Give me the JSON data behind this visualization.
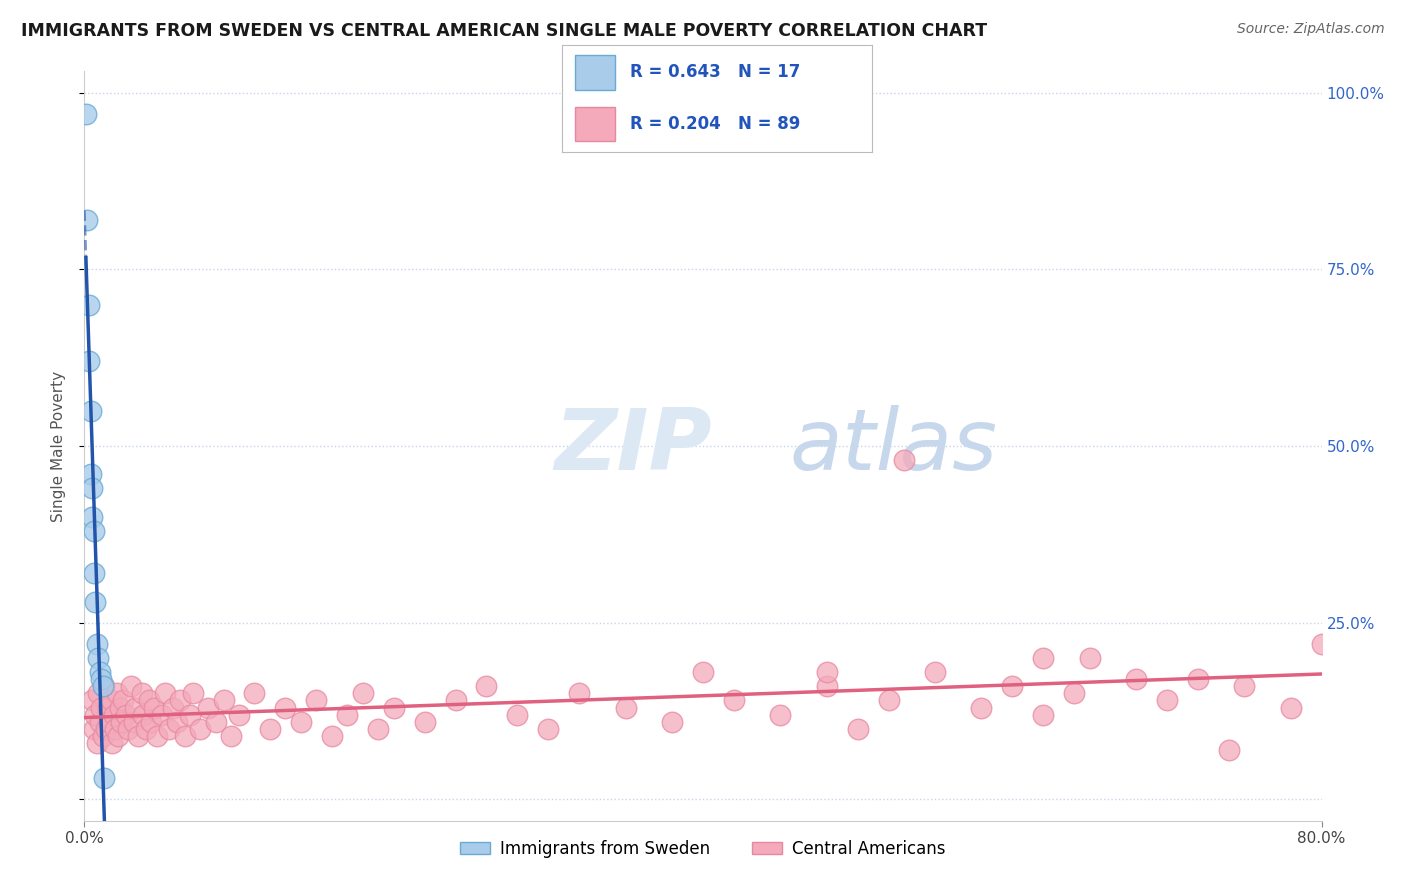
{
  "title": "IMMIGRANTS FROM SWEDEN VS CENTRAL AMERICAN SINGLE MALE POVERTY CORRELATION CHART",
  "source": "Source: ZipAtlas.com",
  "ylabel": "Single Male Poverty",
  "xlim": [
    0.0,
    0.8
  ],
  "ylim": [
    -0.03,
    1.03
  ],
  "yticks_right": [
    0.0,
    0.25,
    0.5,
    0.75,
    1.0
  ],
  "yticklabels_right": [
    "",
    "25.0%",
    "50.0%",
    "75.0%",
    "100.0%"
  ],
  "sweden_color": "#A8CCEA",
  "sweden_edge": "#6AAAD4",
  "ca_color": "#F4AABB",
  "ca_edge": "#E888A0",
  "sweden_line_color": "#2255AA",
  "ca_line_color": "#E06080",
  "background_color": "#FFFFFF",
  "grid_color": "#C8D4E8",
  "legend_R_sweden": "R = 0.643",
  "legend_N_sweden": "N = 17",
  "legend_R_ca": "R = 0.204",
  "legend_N_ca": "N = 89",
  "sweden_x": [
    0.001,
    0.002,
    0.003,
    0.003,
    0.004,
    0.004,
    0.005,
    0.005,
    0.006,
    0.006,
    0.007,
    0.008,
    0.009,
    0.01,
    0.011,
    0.012,
    0.013
  ],
  "sweden_y": [
    0.97,
    0.82,
    0.7,
    0.62,
    0.55,
    0.46,
    0.44,
    0.4,
    0.38,
    0.32,
    0.28,
    0.22,
    0.2,
    0.18,
    0.17,
    0.16,
    0.03
  ],
  "ca_x": [
    0.005,
    0.006,
    0.007,
    0.008,
    0.009,
    0.01,
    0.011,
    0.012,
    0.013,
    0.014,
    0.015,
    0.016,
    0.017,
    0.018,
    0.019,
    0.02,
    0.021,
    0.022,
    0.023,
    0.024,
    0.025,
    0.027,
    0.028,
    0.03,
    0.032,
    0.033,
    0.035,
    0.037,
    0.038,
    0.04,
    0.042,
    0.043,
    0.045,
    0.047,
    0.05,
    0.052,
    0.055,
    0.057,
    0.06,
    0.062,
    0.065,
    0.068,
    0.07,
    0.075,
    0.08,
    0.085,
    0.09,
    0.095,
    0.1,
    0.11,
    0.12,
    0.13,
    0.14,
    0.15,
    0.16,
    0.17,
    0.18,
    0.19,
    0.2,
    0.22,
    0.24,
    0.26,
    0.28,
    0.3,
    0.32,
    0.35,
    0.38,
    0.4,
    0.42,
    0.45,
    0.48,
    0.5,
    0.52,
    0.55,
    0.58,
    0.6,
    0.62,
    0.64,
    0.65,
    0.68,
    0.7,
    0.72,
    0.75,
    0.78,
    0.8,
    0.74,
    0.62,
    0.53,
    0.48
  ],
  "ca_y": [
    0.14,
    0.1,
    0.12,
    0.08,
    0.15,
    0.11,
    0.13,
    0.09,
    0.16,
    0.1,
    0.13,
    0.11,
    0.14,
    0.08,
    0.12,
    0.1,
    0.15,
    0.09,
    0.13,
    0.11,
    0.14,
    0.12,
    0.1,
    0.16,
    0.11,
    0.13,
    0.09,
    0.15,
    0.12,
    0.1,
    0.14,
    0.11,
    0.13,
    0.09,
    0.12,
    0.15,
    0.1,
    0.13,
    0.11,
    0.14,
    0.09,
    0.12,
    0.15,
    0.1,
    0.13,
    0.11,
    0.14,
    0.09,
    0.12,
    0.15,
    0.1,
    0.13,
    0.11,
    0.14,
    0.09,
    0.12,
    0.15,
    0.1,
    0.13,
    0.11,
    0.14,
    0.16,
    0.12,
    0.1,
    0.15,
    0.13,
    0.11,
    0.18,
    0.14,
    0.12,
    0.16,
    0.1,
    0.14,
    0.18,
    0.13,
    0.16,
    0.12,
    0.15,
    0.2,
    0.17,
    0.14,
    0.17,
    0.16,
    0.13,
    0.22,
    0.07,
    0.2,
    0.48,
    0.18
  ]
}
